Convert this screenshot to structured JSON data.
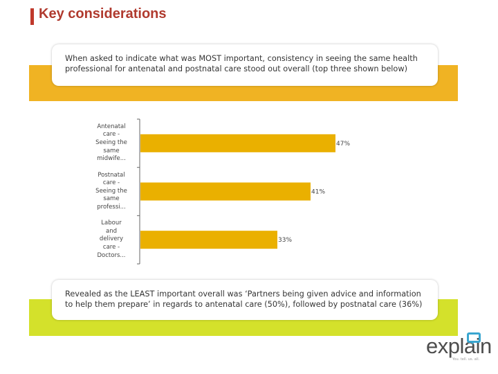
{
  "page": {
    "title": "Key considerations",
    "callout_top": "When asked to indicate what was MOST important, consistency in seeing the same health professional for antenatal and postnatal care stood out overall (top three shown below)",
    "callout_bottom": "Revealed as the LEAST important overall was ‘Partners being given advice and information to help them prepare’ in regards to antenatal care (50%), followed by postnatal care (36%)"
  },
  "logo": {
    "text": "explain",
    "tagline": "You. tell. us. all."
  },
  "colors": {
    "title": "#b03a2e",
    "bar": "#eab000",
    "band_top": "#f0b323",
    "band_bottom": "#d4e12b",
    "logo_accent": "#3aa6d0"
  },
  "chart_data": {
    "type": "bar",
    "orientation": "horizontal",
    "categories": [
      "Antenatal care - Seeing the same midwife...",
      "Postnatal care - Seeing the same professi...",
      "Labour and delivery care - Doctors..."
    ],
    "category_lines": [
      [
        "Antenatal",
        "care -",
        "Seeing the",
        "same",
        "midwife..."
      ],
      [
        "Postnatal",
        "care -",
        "Seeing the",
        "same",
        "professi..."
      ],
      [
        "Labour",
        "and",
        "delivery",
        "care -",
        "Doctors..."
      ]
    ],
    "values": [
      47,
      41,
      33
    ],
    "value_labels": [
      "47%",
      "41%",
      "33%"
    ],
    "unit": "%",
    "xlim": [
      0,
      50
    ],
    "title": "",
    "xlabel": "",
    "ylabel": "",
    "grid": false,
    "legend": "none"
  }
}
